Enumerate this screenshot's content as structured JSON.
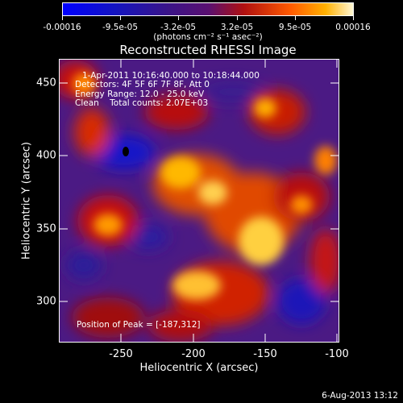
{
  "colorbar": {
    "tick_labels": [
      "-0.00016",
      "-9.5e-05",
      "-3.2e-05",
      "3.2e-05",
      "9.5e-05",
      "0.00016"
    ],
    "units": "(photons cm⁻² s⁻¹ asec⁻²)"
  },
  "title": "Reconstructed RHESSI Image",
  "annotations": {
    "time_range": "1-Apr-2011 10:16:40.000 to 10:18:44.000",
    "detectors": "Detectors: 4F 5F 6F 7F 8F, Att 0",
    "energy": "Energy Range: 12.0 - 25.0 keV",
    "clean": "Clean    Total counts: 2.07E+03",
    "peak": "Position of Peak = [-187,312]"
  },
  "axes": {
    "xlabel": "Heliocentric X (arcsec)",
    "ylabel": "Heliocentric Y (arcsec)",
    "xticks": [
      "-250",
      "-200",
      "-150",
      "-100"
    ],
    "yticks": [
      "450",
      "400",
      "350",
      "300"
    ]
  },
  "footer_date": "6-Aug-2013 13:12",
  "colors": {
    "negative_deep": "#1010d8",
    "background": "#4b1a84",
    "positive_low": "#c01010",
    "positive_mid": "#ff7a00",
    "positive_high": "#ffe070"
  }
}
